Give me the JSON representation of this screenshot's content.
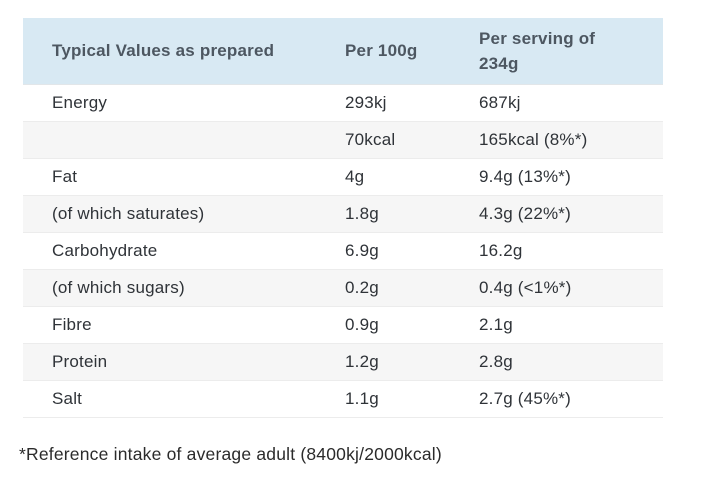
{
  "table": {
    "header": {
      "col1": "Typical Values as prepared",
      "col2": "Per 100g",
      "col3": "Per serving of 234g"
    },
    "rows": [
      {
        "label": "Energy",
        "per_100g": "293kj",
        "per_serving": "687kj"
      },
      {
        "label": "",
        "per_100g": "70kcal",
        "per_serving": "165kcal (8%*)"
      },
      {
        "label": "Fat",
        "per_100g": "4g",
        "per_serving": "9.4g (13%*)"
      },
      {
        "label": "(of which saturates)",
        "per_100g": "1.8g",
        "per_serving": "4.3g (22%*)"
      },
      {
        "label": "Carbohydrate",
        "per_100g": "6.9g",
        "per_serving": "16.2g"
      },
      {
        "label": "(of which sugars)",
        "per_100g": "0.2g",
        "per_serving": "0.4g (<1%*)"
      },
      {
        "label": "Fibre",
        "per_100g": "0.9g",
        "per_serving": "2.1g"
      },
      {
        "label": "Protein",
        "per_100g": "1.2g",
        "per_serving": "2.8g"
      },
      {
        "label": "Salt",
        "per_100g": "1.1g",
        "per_serving": "2.7g (45%*)"
      }
    ],
    "footnote": "*Reference intake of average adult (8400kj/2000kcal)"
  },
  "colors": {
    "header_bg": "#d8e9f3",
    "alt_row_bg": "#f6f6f6",
    "row_border": "#ececec",
    "header_text": "#4d5761",
    "body_text": "#2f3338"
  }
}
